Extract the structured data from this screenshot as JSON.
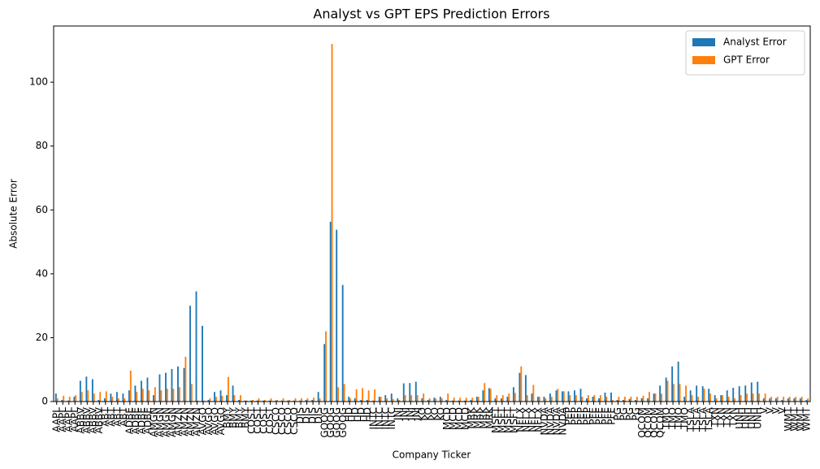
{
  "chart_data": {
    "type": "bar",
    "title": "Analyst vs GPT EPS Prediction Errors",
    "x_label": "Company Ticker",
    "y_label": "Absolute Error",
    "categories": [
      "AAPL",
      "AAPL",
      "AAPL",
      "AAPL",
      "ABBV",
      "ABBV",
      "ABBV",
      "ABBV",
      "ABT",
      "ABT",
      "ABT",
      "ABT",
      "ADBE",
      "ADBE",
      "ADBE",
      "ADBE",
      "AMGN",
      "AMGN",
      "AMGN",
      "AMGN",
      "AMZN",
      "AMZN",
      "AMZN",
      "AMZN",
      "AVGO",
      "AVGO",
      "AVGO",
      "AVGO",
      "BMY",
      "BMY",
      "BMY",
      "BMY",
      "COST",
      "COST",
      "COST",
      "COST",
      "CSCO",
      "CSCO",
      "CSCO",
      "CSCO",
      "DIS",
      "DIS",
      "DIS",
      "DIS",
      "GOOG",
      "GOOG",
      "GOOG",
      "GOOG",
      "HD",
      "HD",
      "HD",
      "HD",
      "INTC",
      "INTC",
      "INTC",
      "INTC",
      "JNJ",
      "JNJ",
      "JNJ",
      "JNJ",
      "KO",
      "KO",
      "KO",
      "KO",
      "MCD",
      "MCD",
      "MCD",
      "MCD",
      "MRK",
      "MRK",
      "MRK",
      "MRK",
      "MSFT",
      "MSFT",
      "MSFT",
      "MSFT",
      "NFLX",
      "NFLX",
      "NFLX",
      "NFLX",
      "NVDA",
      "NVDA",
      "NVDA",
      "NVDA",
      "PEP",
      "PEP",
      "PEP",
      "PEP",
      "PFE",
      "PFE",
      "PFE",
      "PFE",
      "PG",
      "PG",
      "PG",
      "PG",
      "QCOM",
      "QCOM",
      "QCOM",
      "QCOM",
      "TMO",
      "TMO",
      "TMO",
      "TMO",
      "TSLA",
      "TSLA",
      "TSLA",
      "TSLA",
      "TXN",
      "TXN",
      "TXN",
      "TXN",
      "UNH",
      "UNH",
      "UNH",
      "UNH",
      "V",
      "V",
      "V",
      "V",
      "WMT",
      "WMT",
      "WMT",
      "WMT"
    ],
    "series": [
      {
        "name": "Analyst Error",
        "color": "#1f77b4",
        "values": [
          2.5,
          0.5,
          0.3,
          1.5,
          6.5,
          7.8,
          7.0,
          0.5,
          1.0,
          2.5,
          3.0,
          2.5,
          3.5,
          5.0,
          6.5,
          7.5,
          2.0,
          8.5,
          9.0,
          10.2,
          11.0,
          10.5,
          30.0,
          34.5,
          23.7,
          0.5,
          3.0,
          3.5,
          2.0,
          5.0,
          0.5,
          0.3,
          0.3,
          0.3,
          0.3,
          0.3,
          0.3,
          0.3,
          0.3,
          0.3,
          0.3,
          0.5,
          0.5,
          3.0,
          18.0,
          56.3,
          53.8,
          36.5,
          1.5,
          1.0,
          0.5,
          0.5,
          0.3,
          1.5,
          2.0,
          2.5,
          1.0,
          5.7,
          5.8,
          6.2,
          1.0,
          0.5,
          1.2,
          1.5,
          0.5,
          0.3,
          0.3,
          0.3,
          0.5,
          1.5,
          3.5,
          4.2,
          1.0,
          1.0,
          1.5,
          4.5,
          9.0,
          8.3,
          2.5,
          1.5,
          1.5,
          2.5,
          3.5,
          3.2,
          3.2,
          3.5,
          4.0,
          1.0,
          1.5,
          1.0,
          2.8,
          2.8,
          0.5,
          0.5,
          0.8,
          0.5,
          1.0,
          1.0,
          2.5,
          5.0,
          7.5,
          11.0,
          12.5,
          1.5,
          3.5,
          5.0,
          4.8,
          4.0,
          2.0,
          2.0,
          3.5,
          4.3,
          4.8,
          5.0,
          6.0,
          6.2,
          1.0,
          1.0,
          1.0,
          0.5,
          1.0,
          1.0,
          1.0,
          0.5
        ]
      },
      {
        "name": "GPT Error",
        "color": "#ff7f0e",
        "values": [
          1.0,
          1.8,
          1.5,
          2.0,
          3.0,
          3.5,
          2.5,
          3.0,
          3.2,
          1.5,
          1.0,
          1.0,
          9.7,
          3.0,
          4.0,
          3.5,
          4.5,
          3.5,
          4.0,
          4.0,
          4.5,
          14.0,
          5.5,
          0.3,
          0.3,
          1.0,
          1.5,
          1.8,
          7.7,
          2.0,
          2.0,
          0.3,
          0.5,
          1.0,
          0.5,
          1.0,
          0.5,
          1.0,
          0.5,
          1.0,
          1.0,
          1.0,
          1.2,
          1.0,
          22.0,
          112.0,
          4.5,
          5.5,
          1.0,
          3.8,
          4.2,
          3.5,
          3.8,
          1.5,
          1.0,
          0.8,
          0.5,
          2.0,
          2.0,
          2.0,
          2.5,
          1.0,
          1.0,
          1.0,
          2.5,
          1.2,
          1.2,
          1.2,
          1.2,
          1.5,
          5.8,
          4.0,
          2.0,
          2.0,
          2.5,
          2.7,
          11.0,
          2.0,
          5.2,
          1.5,
          1.0,
          1.5,
          4.0,
          3.2,
          2.0,
          2.0,
          1.5,
          2.0,
          2.0,
          2.0,
          1.5,
          0.5,
          1.5,
          1.5,
          1.5,
          1.5,
          1.8,
          3.0,
          2.5,
          2.5,
          6.5,
          5.5,
          5.5,
          5.0,
          2.0,
          1.5,
          4.0,
          2.5,
          1.0,
          2.0,
          1.5,
          1.0,
          2.0,
          2.5,
          2.5,
          2.5,
          2.5,
          1.5,
          1.5,
          1.5,
          1.5,
          1.5,
          1.5,
          1.0
        ]
      }
    ],
    "ylim": [
      0,
      117.6
    ],
    "yticks": [
      0,
      20,
      40,
      60,
      80,
      100
    ],
    "grid": false,
    "legend": "upper right"
  }
}
